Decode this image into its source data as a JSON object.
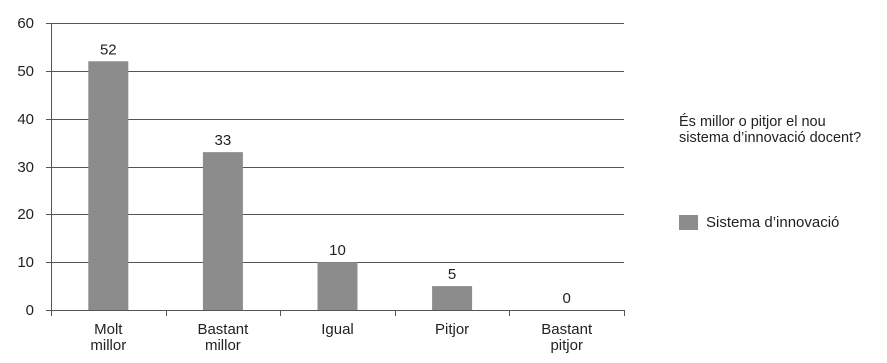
{
  "chart_data": {
    "type": "bar",
    "title": "És millor o pitjor el nou sistema d’innovació docent?",
    "categories": [
      [
        "Molt",
        "millor"
      ],
      [
        "Bastant",
        "millor"
      ],
      [
        "Igual"
      ],
      [
        "Pitjor"
      ],
      [
        "Bastant",
        "pitjor"
      ]
    ],
    "series": [
      {
        "name": "Sistema d’innovació",
        "values": [
          52,
          33,
          10,
          5,
          0
        ],
        "color": "#8c8c8c"
      }
    ],
    "ylim": [
      0,
      60
    ],
    "yticks": [
      0,
      10,
      20,
      30,
      40,
      50,
      60
    ],
    "grid": true,
    "legend_position": "right"
  }
}
